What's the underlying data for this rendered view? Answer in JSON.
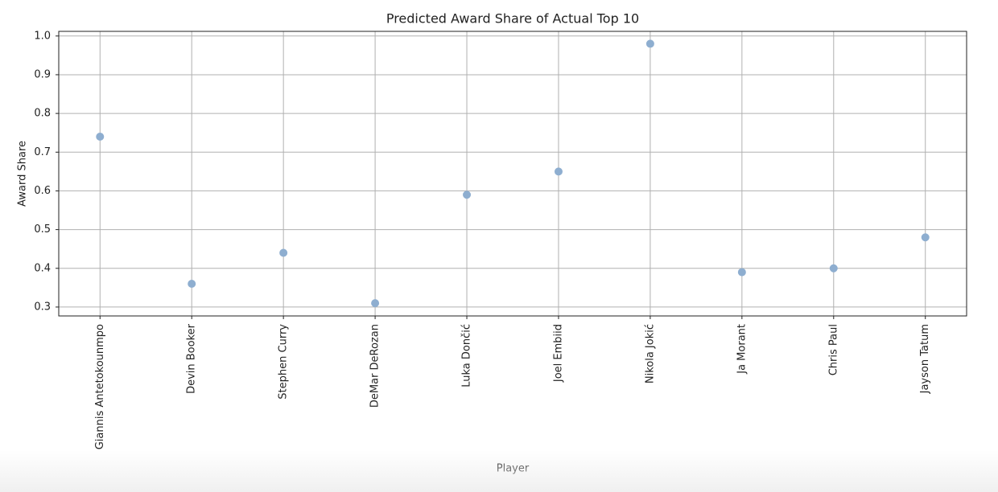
{
  "chart_data": {
    "type": "scatter",
    "title": "Predicted Award Share of Actual Top 10",
    "x_label": "Player",
    "y_label": "Award Share",
    "categories": [
      "Giannis Antetokounmpo",
      "Devin Booker",
      "Stephen Curry",
      "DeMar DeRozan",
      "Luka Dončić",
      "Joel Embiid",
      "Nikola Jokić",
      "Ja Morant",
      "Chris Paul",
      "Jayson Tatum"
    ],
    "values": [
      0.74,
      0.36,
      0.44,
      0.31,
      0.59,
      0.65,
      0.98,
      0.39,
      0.4,
      0.48
    ],
    "color": "#8eaed0",
    "ylim": [
      0.277,
      1.012
    ],
    "yticks": [
      0.3,
      0.4,
      0.5,
      0.6,
      0.7,
      0.8,
      0.9,
      {
        "value": 1,
        "label": "1.0"
      }
    ],
    "grid": true
  }
}
